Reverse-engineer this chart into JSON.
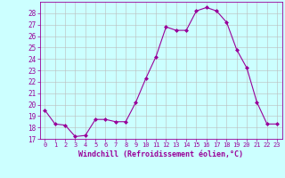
{
  "x": [
    0,
    1,
    2,
    3,
    4,
    5,
    6,
    7,
    8,
    9,
    10,
    11,
    12,
    13,
    14,
    15,
    16,
    17,
    18,
    19,
    20,
    21,
    22,
    23
  ],
  "y": [
    19.5,
    18.3,
    18.2,
    17.2,
    17.3,
    18.7,
    18.7,
    18.5,
    18.5,
    20.2,
    22.3,
    24.2,
    26.8,
    26.5,
    26.5,
    28.2,
    28.5,
    28.2,
    27.2,
    24.8,
    23.2,
    20.2,
    18.3,
    18.3
  ],
  "xlim": [
    -0.5,
    23.5
  ],
  "ylim": [
    17,
    29
  ],
  "yticks": [
    17,
    18,
    19,
    20,
    21,
    22,
    23,
    24,
    25,
    26,
    27,
    28
  ],
  "xticks": [
    0,
    1,
    2,
    3,
    4,
    5,
    6,
    7,
    8,
    9,
    10,
    11,
    12,
    13,
    14,
    15,
    16,
    17,
    18,
    19,
    20,
    21,
    22,
    23
  ],
  "xlabel": "Windchill (Refroidissement éolien,°C)",
  "line_color": "#990099",
  "marker": "D",
  "marker_size": 2.0,
  "bg_color": "#ccffff",
  "grid_color": "#bbbbbb",
  "xlabel_color": "#990099",
  "tick_color": "#990099",
  "tick_fontsize": 5.5,
  "xlabel_fontsize": 6.0
}
